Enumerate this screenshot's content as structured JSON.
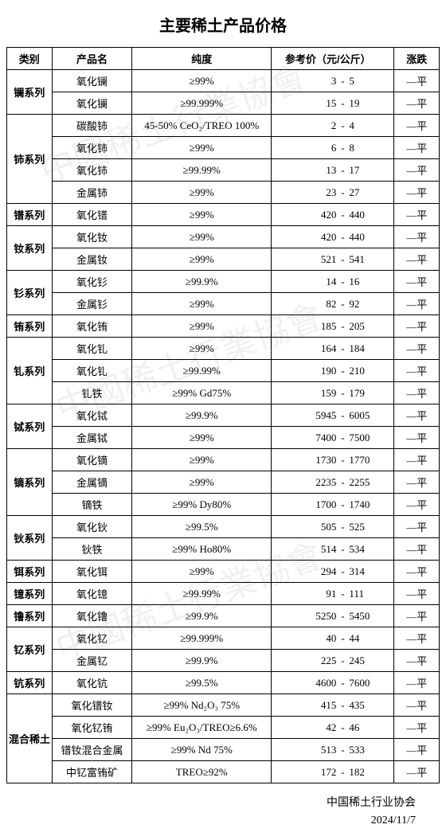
{
  "title": "主要稀土产品价格",
  "columns": [
    "类别",
    "产品名",
    "纯度",
    "参考价（元/公斤）",
    "涨跌"
  ],
  "footer_org": "中国稀土行业协会",
  "footer_date": "2024/11/7",
  "groups": [
    {
      "cat": "镧系列",
      "rows": [
        {
          "prod": "氧化镧",
          "purity": "≥99%",
          "lo": "3",
          "hi": "5",
          "trend": "—平"
        },
        {
          "prod": "氧化镧",
          "purity": "≥99.999%",
          "lo": "15",
          "hi": "19",
          "trend": "—平"
        }
      ]
    },
    {
      "cat": "铈系列",
      "rows": [
        {
          "prod": "碳酸铈",
          "purity": "45-50% CeO₂/TREO 100%",
          "lo": "2",
          "hi": "4",
          "trend": "—平"
        },
        {
          "prod": "氧化铈",
          "purity": "≥99%",
          "lo": "6",
          "hi": "8",
          "trend": "—平"
        },
        {
          "prod": "氧化铈",
          "purity": "≥99.99%",
          "lo": "13",
          "hi": "17",
          "trend": "—平"
        },
        {
          "prod": "金属铈",
          "purity": "≥99%",
          "lo": "23",
          "hi": "27",
          "trend": "—平"
        }
      ]
    },
    {
      "cat": "镨系列",
      "rows": [
        {
          "prod": "氧化镨",
          "purity": "≥99%",
          "lo": "420",
          "hi": "440",
          "trend": "—平"
        }
      ]
    },
    {
      "cat": "钕系列",
      "rows": [
        {
          "prod": "氧化钕",
          "purity": "≥99%",
          "lo": "420",
          "hi": "440",
          "trend": "—平"
        },
        {
          "prod": "金属钕",
          "purity": "≥99%",
          "lo": "521",
          "hi": "541",
          "trend": "—平"
        }
      ]
    },
    {
      "cat": "钐系列",
      "rows": [
        {
          "prod": "氧化钐",
          "purity": "≥99.9%",
          "lo": "14",
          "hi": "16",
          "trend": "—平"
        },
        {
          "prod": "金属钐",
          "purity": "≥99%",
          "lo": "82",
          "hi": "92",
          "trend": "—平"
        }
      ]
    },
    {
      "cat": "铕系列",
      "rows": [
        {
          "prod": "氧化铕",
          "purity": "≥99%",
          "lo": "185",
          "hi": "205",
          "trend": "—平"
        }
      ]
    },
    {
      "cat": "钆系列",
      "rows": [
        {
          "prod": "氧化钆",
          "purity": "≥99%",
          "lo": "164",
          "hi": "184",
          "trend": "—平"
        },
        {
          "prod": "氧化钆",
          "purity": "≥99.99%",
          "lo": "190",
          "hi": "210",
          "trend": "—平"
        },
        {
          "prod": "钆铁",
          "purity": "≥99% Gd75%",
          "lo": "159",
          "hi": "179",
          "trend": "—平"
        }
      ]
    },
    {
      "cat": "铽系列",
      "rows": [
        {
          "prod": "氧化铽",
          "purity": "≥99.9%",
          "lo": "5945",
          "hi": "6005",
          "trend": "—平"
        },
        {
          "prod": "金属铽",
          "purity": "≥99%",
          "lo": "7400",
          "hi": "7500",
          "trend": "—平"
        }
      ]
    },
    {
      "cat": "镝系列",
      "rows": [
        {
          "prod": "氧化镝",
          "purity": "≥99%",
          "lo": "1730",
          "hi": "1770",
          "trend": "—平"
        },
        {
          "prod": "金属镝",
          "purity": "≥99%",
          "lo": "2235",
          "hi": "2255",
          "trend": "—平"
        },
        {
          "prod": "镝铁",
          "purity": "≥99% Dy80%",
          "lo": "1700",
          "hi": "1740",
          "trend": "—平"
        }
      ]
    },
    {
      "cat": "钬系列",
      "rows": [
        {
          "prod": "氧化钬",
          "purity": "≥99.5%",
          "lo": "505",
          "hi": "525",
          "trend": "—平"
        },
        {
          "prod": "钬铁",
          "purity": "≥99% Ho80%",
          "lo": "514",
          "hi": "534",
          "trend": "—平"
        }
      ]
    },
    {
      "cat": "铒系列",
      "rows": [
        {
          "prod": "氧化铒",
          "purity": "≥99%",
          "lo": "294",
          "hi": "314",
          "trend": "—平"
        }
      ]
    },
    {
      "cat": "镱系列",
      "rows": [
        {
          "prod": "氧化镱",
          "purity": "≥99.99%",
          "lo": "91",
          "hi": "111",
          "trend": "—平"
        }
      ]
    },
    {
      "cat": "镥系列",
      "rows": [
        {
          "prod": "氧化镥",
          "purity": "≥99.9%",
          "lo": "5250",
          "hi": "5450",
          "trend": "—平"
        }
      ]
    },
    {
      "cat": "钇系列",
      "rows": [
        {
          "prod": "氧化钇",
          "purity": "≥99.999%",
          "lo": "40",
          "hi": "44",
          "trend": "—平"
        },
        {
          "prod": "金属钇",
          "purity": "≥99.9%",
          "lo": "225",
          "hi": "245",
          "trend": "—平"
        }
      ]
    },
    {
      "cat": "钪系列",
      "rows": [
        {
          "prod": "氧化钪",
          "purity": "≥99.5%",
          "lo": "4600",
          "hi": "7600",
          "trend": "—平"
        }
      ]
    },
    {
      "cat": "混合稀土",
      "rows": [
        {
          "prod": "氧化镨钕",
          "purity": "≥99%  Nd₂O₃  75%",
          "lo": "415",
          "hi": "435",
          "trend": "—平"
        },
        {
          "prod": "氧化钇铕",
          "purity": "≥99% Eu₂O₃/TREO≥6.6%",
          "lo": "42",
          "hi": "46",
          "trend": "—平"
        },
        {
          "prod": "镨钕混合金属",
          "purity": "≥99% Nd 75%",
          "lo": "513",
          "hi": "533",
          "trend": "—平"
        },
        {
          "prod": "中钇富铕矿",
          "purity": "TREO≥92%",
          "lo": "172",
          "hi": "182",
          "trend": "—平"
        }
      ]
    }
  ]
}
